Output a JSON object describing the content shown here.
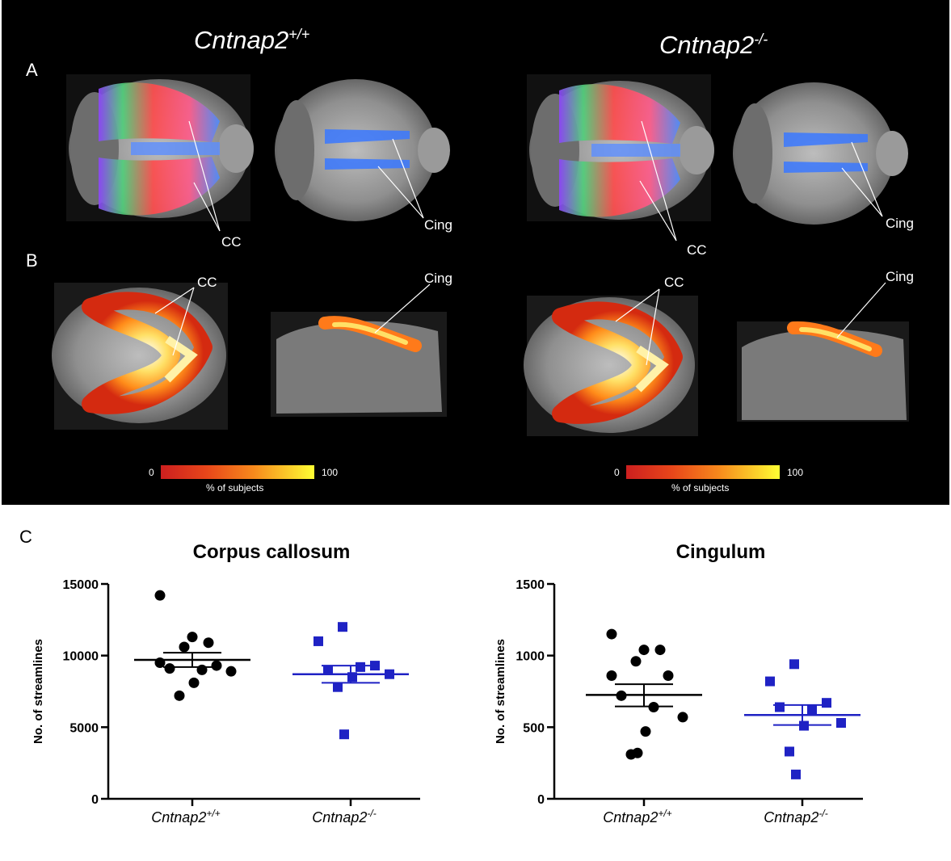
{
  "panel_labels": {
    "a": "A",
    "b": "B",
    "c": "C"
  },
  "genotypes": {
    "wt_base": "Cntnap2",
    "wt_sup": "+/+",
    "ko_base": "Cntnap2",
    "ko_sup": "-/-"
  },
  "tract_labels": {
    "cc": "CC",
    "cing": "Cing"
  },
  "colorbar": {
    "min": "0",
    "max": "100",
    "label": "% of subjects"
  },
  "colors": {
    "wt": "#000000",
    "ko": "#1f22c4",
    "background": "#000000"
  },
  "chart_data": [
    {
      "type": "scatter",
      "title": "Corpus callosum",
      "ylabel": "No. of streamlines",
      "ylim": [
        0,
        15000
      ],
      "yticks": [
        "0",
        "5000",
        "10000",
        "15000"
      ],
      "ytick_values": [
        0,
        5000,
        10000,
        15000
      ],
      "categories": [
        "Cntnap2+/+",
        "Cntnap2-/-"
      ],
      "series": [
        {
          "name": "Cntnap2+/+",
          "marker": "circle",
          "color": "#000000",
          "values": [
            14200,
            11300,
            10900,
            10600,
            9500,
            9300,
            9100,
            9000,
            8900,
            8100,
            7200
          ],
          "mean": 9700,
          "sem_low": 9200,
          "sem_high": 10200
        },
        {
          "name": "Cntnap2-/-",
          "marker": "square",
          "color": "#1f22c4",
          "values": [
            12000,
            11000,
            9300,
            9000,
            9200,
            8700,
            8500,
            7800,
            4500
          ],
          "mean": 8700,
          "sem_low": 8100,
          "sem_high": 9300
        }
      ]
    },
    {
      "type": "scatter",
      "title": "Cingulum",
      "ylabel": "No. of streamlines",
      "ylim": [
        0,
        1500
      ],
      "yticks": [
        "0",
        "500",
        "1000",
        "1500"
      ],
      "ytick_values": [
        0,
        500,
        1000,
        1500
      ],
      "categories": [
        "Cntnap2+/+",
        "Cntnap2-/-"
      ],
      "series": [
        {
          "name": "Cntnap2+/+",
          "marker": "circle",
          "color": "#000000",
          "values": [
            1150,
            1040,
            1040,
            960,
            860,
            860,
            720,
            640,
            570,
            470,
            310,
            320
          ],
          "mean": 725,
          "sem_low": 645,
          "sem_high": 800
        },
        {
          "name": "Cntnap2-/-",
          "marker": "square",
          "color": "#1f22c4",
          "values": [
            940,
            820,
            670,
            640,
            620,
            530,
            510,
            330,
            170
          ],
          "mean": 585,
          "sem_low": 515,
          "sem_high": 655
        }
      ]
    }
  ]
}
